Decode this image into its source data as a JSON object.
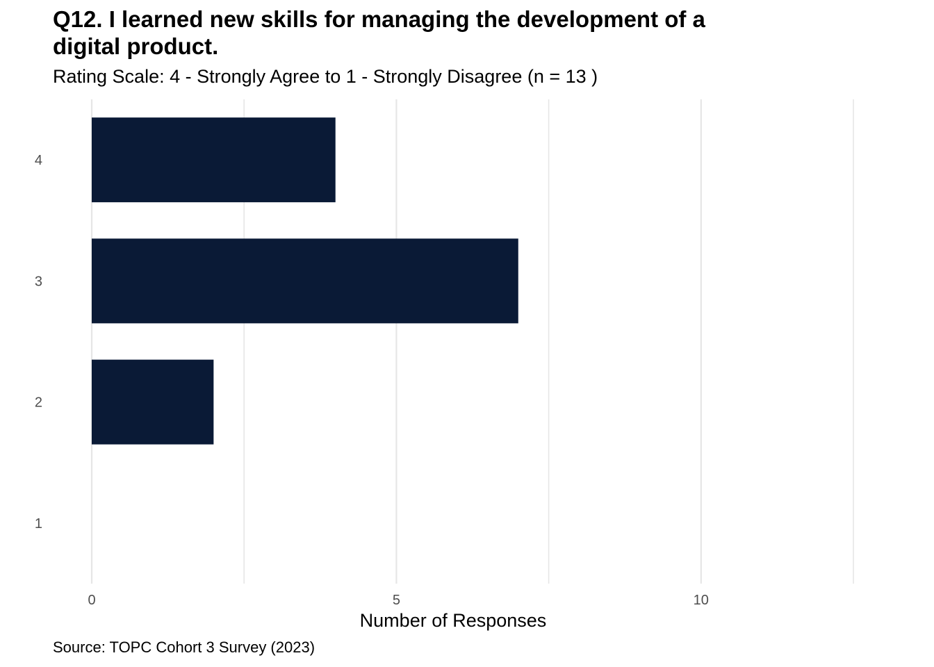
{
  "chart_data": {
    "type": "bar",
    "orientation": "horizontal",
    "title": "Q12. I learned new skills for managing the development of a digital product.",
    "subtitle": "Rating Scale: 4 - Strongly Agree to 1 - Strongly Disagree (n = 13 )",
    "caption": "Source: TOPC Cohort 3 Survey (2023)",
    "categories": [
      "4",
      "3",
      "2",
      "1"
    ],
    "values": [
      4,
      7,
      2,
      0
    ],
    "xlabel": "Number of Responses",
    "ylabel": "",
    "xlim": [
      0,
      12.5
    ],
    "x_ticks": [
      0,
      5,
      10
    ],
    "x_tick_labels": [
      "0",
      "5",
      "10"
    ],
    "grid": true,
    "bar_color": "#0a1a36",
    "grid_color": "#e6e6e6"
  }
}
